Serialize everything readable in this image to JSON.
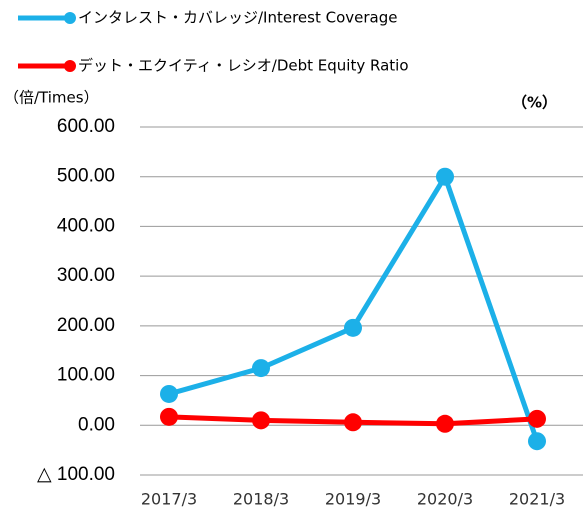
{
  "chart_data": {
    "type": "line",
    "axis_label": "（倍/Times）",
    "y2_label": "（%）",
    "categories": [
      "2017/3",
      "2018/3",
      "2019/3",
      "2020/3",
      "2021/3"
    ],
    "series": [
      {
        "name": "インタレスト・カバレッジ/Interest Coverage",
        "color": "#1cb0e8",
        "values": [
          63,
          115,
          196,
          500,
          -32
        ]
      },
      {
        "name": "デット・エクイティ・レシオ/Debt Equity Ratio",
        "color": "#ff0000",
        "values": [
          17,
          10,
          6,
          3,
          13
        ]
      }
    ],
    "ylim": [
      -100,
      600
    ],
    "yticks": [
      {
        "value": -100,
        "label": "△ 100.00"
      },
      {
        "value": 0,
        "label": "0.00"
      },
      {
        "value": 100,
        "label": "100.00"
      },
      {
        "value": 200,
        "label": "200.00"
      },
      {
        "value": 300,
        "label": "300.00"
      },
      {
        "value": 400,
        "label": "400.00"
      },
      {
        "value": 500,
        "label": "500.00"
      },
      {
        "value": 600,
        "label": "600.00"
      }
    ],
    "grid": true
  }
}
